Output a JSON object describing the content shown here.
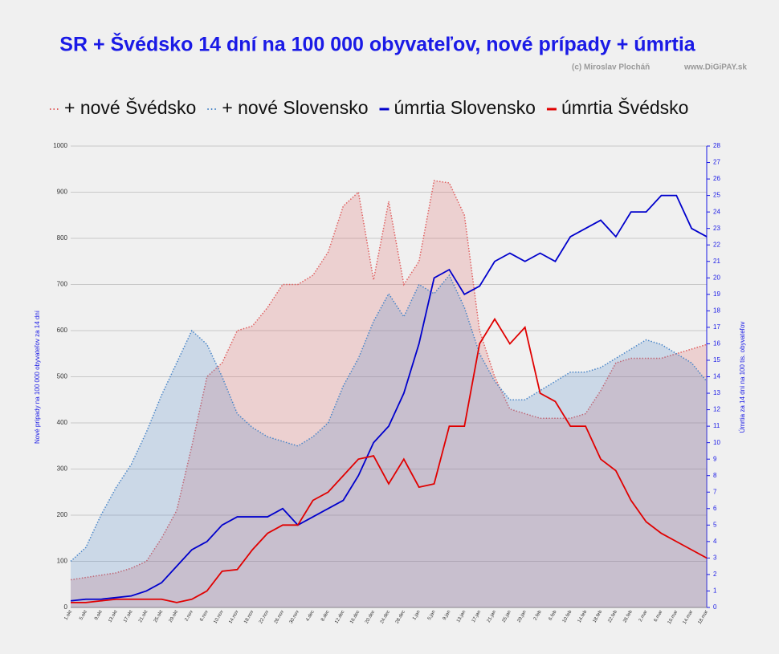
{
  "chart_data": {
    "type": "line",
    "title": "SR + Švédsko 14 dní na 100 000 obyvateľov,  nové prípady + úmrtia",
    "credit": "(c) Miroslav Plocháň",
    "website": "www.DiGiPAY.sk",
    "y_label": "Nové prípady na 100 000 obyvateľov za 14 dní",
    "y2_label": "Úmrtia za 14 dní na 100 tis. obyvateľov",
    "categories": [
      "1.okt",
      "5.okt",
      "9.okt",
      "13.okt",
      "17.okt",
      "21.okt",
      "25.okt",
      "29.okt",
      "2.nov",
      "6.nov",
      "10.nov",
      "14.nov",
      "18.nov",
      "22.nov",
      "26.nov",
      "30.nov",
      "4.dec",
      "8.dec",
      "12.dec",
      "16.dec",
      "20.dec",
      "24.dec",
      "28.dec",
      "1.jan",
      "5.jan",
      "9.jan",
      "13.jan",
      "17.jan",
      "21.jan",
      "25.jan",
      "29.jan",
      "2.feb",
      "6.feb",
      "10.feb",
      "14.feb",
      "18.feb",
      "22.feb",
      "26.feb",
      "2.mar",
      "6.mar",
      "10.mar",
      "14.mar",
      "18.mar"
    ],
    "series": [
      {
        "name": "+ nové Švédsko",
        "style": "area",
        "color": "#e06060",
        "values": [
          60,
          65,
          70,
          75,
          85,
          100,
          150,
          210,
          350,
          500,
          530,
          600,
          610,
          650,
          700,
          700,
          720,
          770,
          870,
          900,
          710,
          880,
          700,
          750,
          925,
          920,
          850,
          600,
          500,
          430,
          420,
          410,
          410,
          410,
          420,
          470,
          530,
          540,
          540,
          540,
          550,
          560,
          570
        ]
      },
      {
        "name": "+ nové Slovensko",
        "style": "area",
        "color": "#4a86c8",
        "values": [
          100,
          130,
          200,
          260,
          310,
          380,
          460,
          530,
          600,
          570,
          500,
          420,
          390,
          370,
          360,
          350,
          370,
          400,
          480,
          540,
          620,
          680,
          630,
          700,
          680,
          720,
          650,
          550,
          490,
          450,
          450,
          470,
          490,
          510,
          510,
          520,
          540,
          560,
          580,
          570,
          550,
          530,
          490
        ]
      },
      {
        "name": "úmrtia Slovensko",
        "style": "line",
        "axis": "y2",
        "color": "#0000cc",
        "values": [
          0.4,
          0.5,
          0.5,
          0.6,
          0.7,
          1,
          1.5,
          2.5,
          3.5,
          4,
          5,
          5.5,
          5.5,
          5.5,
          6,
          5,
          5.5,
          6,
          6.5,
          8,
          10,
          11,
          13,
          16,
          20,
          20.5,
          19,
          19.5,
          21,
          21.5,
          21,
          21.5,
          21,
          22.5,
          23,
          23.5,
          22.5,
          24,
          24,
          25,
          25,
          23,
          22.5
        ]
      },
      {
        "name": "úmrtia Švédsko",
        "style": "line",
        "axis": "y2",
        "color": "#e00000",
        "values": [
          0.3,
          0.3,
          0.4,
          0.5,
          0.5,
          0.5,
          0.5,
          0.3,
          0.5,
          1,
          2.2,
          2.3,
          3.5,
          4.5,
          5,
          5,
          6.5,
          7,
          8,
          9,
          9.2,
          7.5,
          9,
          7.3,
          7.5,
          11,
          11,
          16,
          17.5,
          16,
          17,
          13,
          12.5,
          11,
          11,
          9,
          8.3,
          6.5,
          5.2,
          4.5,
          4,
          3.5,
          3
        ]
      }
    ],
    "ylim": [
      0,
      1000
    ],
    "yticks": [
      0,
      100,
      200,
      300,
      400,
      500,
      600,
      700,
      800,
      900,
      1000
    ],
    "y2lim": [
      0,
      28
    ],
    "y2ticks": [
      0,
      1,
      2,
      3,
      4,
      5,
      6,
      7,
      8,
      9,
      10,
      11,
      12,
      13,
      14,
      15,
      16,
      17,
      18,
      19,
      20,
      21,
      22,
      23,
      24,
      25,
      26,
      27,
      28
    ],
    "grid": true
  }
}
